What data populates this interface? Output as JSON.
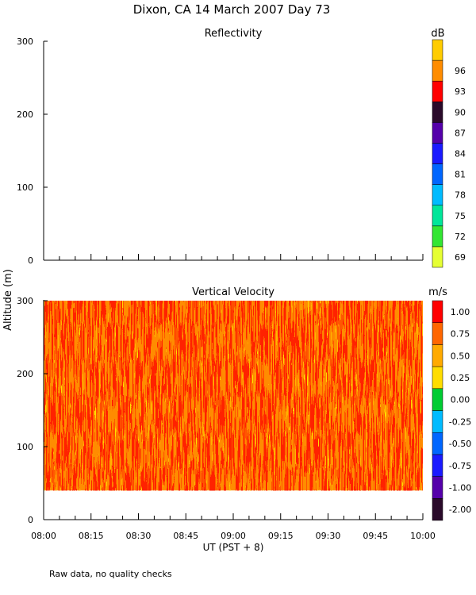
{
  "figure_title": "Dixon, CA 14 March 2007  Day  73",
  "footer_note": "Raw data, no quality checks",
  "shared_ylabel": "Altitude (m)",
  "colors": {
    "reflectivity_scale": [
      "#e6ff33",
      "#33e633",
      "#00e699",
      "#00bbff",
      "#0066ff",
      "#1a1aff",
      "#5500aa",
      "#2a0a2a",
      "#ff0000",
      "#ff8c00",
      "#ffcc00"
    ],
    "velocity_scale": [
      "#2a0a2a",
      "#5500aa",
      "#1a1aff",
      "#0066ff",
      "#00bbff",
      "#00cc33",
      "#ffdd00",
      "#ffaa00",
      "#ff6600",
      "#ff0000"
    ],
    "field_low": "#ffdd00",
    "field_mid": "#ff8c00",
    "field_high": "#ff2200"
  },
  "chart_data": [
    {
      "type": "heatmap",
      "title": "Reflectivity",
      "ylabel": "Altitude (m)",
      "xlim": [
        "08:00",
        "10:00"
      ],
      "ylim": [
        0,
        300
      ],
      "yticks": [
        "0",
        "100",
        "200",
        "300"
      ],
      "colorbar": {
        "unit": "dB",
        "ticks": [
          "69",
          "72",
          "75",
          "78",
          "81",
          "84",
          "87",
          "90",
          "93",
          "96"
        ]
      },
      "values": []
    },
    {
      "type": "heatmap",
      "title": "Vertical Velocity",
      "ylabel": "Altitude (m)",
      "xlabel": "UT  (PST + 8)",
      "xticks": [
        "08:00",
        "08:15",
        "08:30",
        "08:45",
        "09:00",
        "09:15",
        "09:30",
        "09:45",
        "10:00"
      ],
      "xlim": [
        "08:00",
        "10:00"
      ],
      "ylim": [
        0,
        300
      ],
      "yticks": [
        "0",
        "100",
        "200",
        "300"
      ],
      "data_altitude_range": [
        40,
        300
      ],
      "value_range": [
        0.5,
        1.0
      ],
      "colorbar": {
        "unit": "m/s",
        "ticks": [
          "-2.00",
          "-1.00",
          "-0.75",
          "-0.50",
          "-0.25",
          "0.00",
          "0.25",
          "0.50",
          "0.75",
          "1.00"
        ]
      }
    }
  ]
}
